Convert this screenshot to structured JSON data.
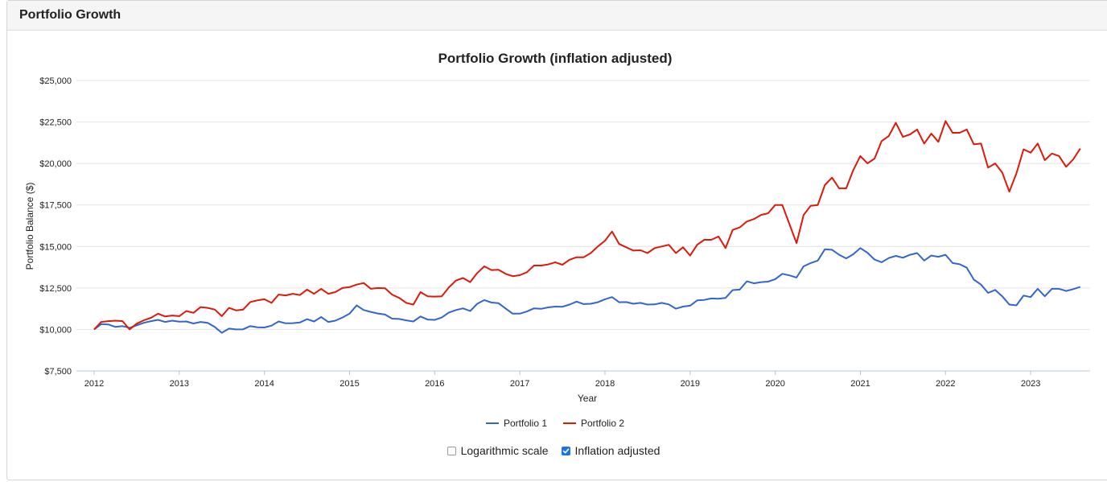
{
  "panel": {
    "title": "Portfolio Growth"
  },
  "options": {
    "log_scale": {
      "label": "Logarithmic scale",
      "checked": false
    },
    "inflation": {
      "label": "Inflation adjusted",
      "checked": true
    }
  },
  "chart_data": {
    "type": "line",
    "title": "Portfolio Growth (inflation adjusted)",
    "xlabel": "Year",
    "ylabel": "Portfolio Balance ($)",
    "xlim": [
      2012,
      2023.65
    ],
    "ylim": [
      7500,
      25000
    ],
    "x_ticks": [
      "2012",
      "2013",
      "2014",
      "2015",
      "2016",
      "2017",
      "2018",
      "2019",
      "2020",
      "2021",
      "2022",
      "2023"
    ],
    "y_ticks": [
      "$7,500",
      "$10,000",
      "$12,500",
      "$15,000",
      "$17,500",
      "$20,000",
      "$22,500",
      "$25,000"
    ],
    "y_tick_values": [
      7500,
      10000,
      12500,
      15000,
      17500,
      20000,
      22500,
      25000
    ],
    "grid": true,
    "legend_position": "bottom",
    "x_start": 2012,
    "x_step": 0.08333,
    "series": [
      {
        "name": "Portfolio 1",
        "color": "#3366cc",
        "values": [
          10000,
          10320,
          10300,
          10150,
          10200,
          10100,
          10250,
          10400,
          10500,
          10580,
          10450,
          10530,
          10470,
          10480,
          10360,
          10450,
          10400,
          10150,
          9800,
          10050,
          10000,
          10010,
          10200,
          10130,
          10120,
          10230,
          10480,
          10370,
          10380,
          10420,
          10620,
          10480,
          10750,
          10450,
          10530,
          10720,
          10950,
          11450,
          11170,
          11060,
          10960,
          10900,
          10650,
          10630,
          10550,
          10480,
          10780,
          10600,
          10580,
          10720,
          11020,
          11170,
          11270,
          11110,
          11550,
          11770,
          11620,
          11580,
          11260,
          10950,
          10950,
          11080,
          11270,
          11240,
          11330,
          11380,
          11370,
          11500,
          11680,
          11530,
          11550,
          11640,
          11820,
          11950,
          11640,
          11650,
          11550,
          11600,
          11500,
          11510,
          11600,
          11510,
          11250,
          11380,
          11430,
          11750,
          11780,
          11870,
          11850,
          11900,
          12370,
          12400,
          12900,
          12780,
          12850,
          12880,
          13030,
          13350,
          13260,
          13130,
          13800,
          14000,
          14150,
          14830,
          14800,
          14500,
          14280,
          14530,
          14900,
          14620,
          14210,
          14050,
          14300,
          14430,
          14320,
          14500,
          14600,
          14150,
          14450,
          14380,
          14500,
          14000,
          13930,
          13720,
          13000,
          12700,
          12200,
          12380,
          12000,
          11500,
          11450,
          12040,
          11950,
          12450,
          12000,
          12450,
          12450,
          12320,
          12430,
          12560
        ]
      },
      {
        "name": "Portfolio 2",
        "color": "#dc1a0c",
        "values": [
          10000,
          10450,
          10500,
          10530,
          10500,
          10000,
          10350,
          10550,
          10700,
          10950,
          10780,
          10840,
          10800,
          11110,
          11000,
          11350,
          11300,
          11200,
          10800,
          11300,
          11150,
          11200,
          11650,
          11750,
          11820,
          11600,
          12100,
          12050,
          12150,
          12070,
          12400,
          12150,
          12450,
          12150,
          12250,
          12500,
          12550,
          12700,
          12800,
          12450,
          12500,
          12480,
          12100,
          11900,
          11600,
          11500,
          12250,
          12000,
          11980,
          12000,
          12530,
          12950,
          13100,
          12850,
          13400,
          13800,
          13580,
          13600,
          13350,
          13210,
          13270,
          13450,
          13850,
          13850,
          13920,
          14050,
          13900,
          14200,
          14350,
          14350,
          14600,
          15000,
          15350,
          15900,
          15150,
          14950,
          14750,
          14770,
          14600,
          14900,
          15000,
          15100,
          14600,
          14950,
          14450,
          15100,
          15400,
          15400,
          15600,
          14900,
          16000,
          16150,
          16500,
          16650,
          16900,
          17000,
          17500,
          17500,
          16350,
          15200,
          16900,
          17450,
          17500,
          18700,
          19150,
          18500,
          18500,
          19600,
          20450,
          20000,
          20300,
          21350,
          21650,
          22450,
          21600,
          21750,
          22050,
          21200,
          21800,
          21300,
          22550,
          21850,
          21850,
          22050,
          21150,
          21200,
          19750,
          20000,
          19450,
          18300,
          19400,
          20850,
          20650,
          21200,
          20200,
          20600,
          20450,
          19800,
          20250,
          20900
        ]
      }
    ]
  }
}
